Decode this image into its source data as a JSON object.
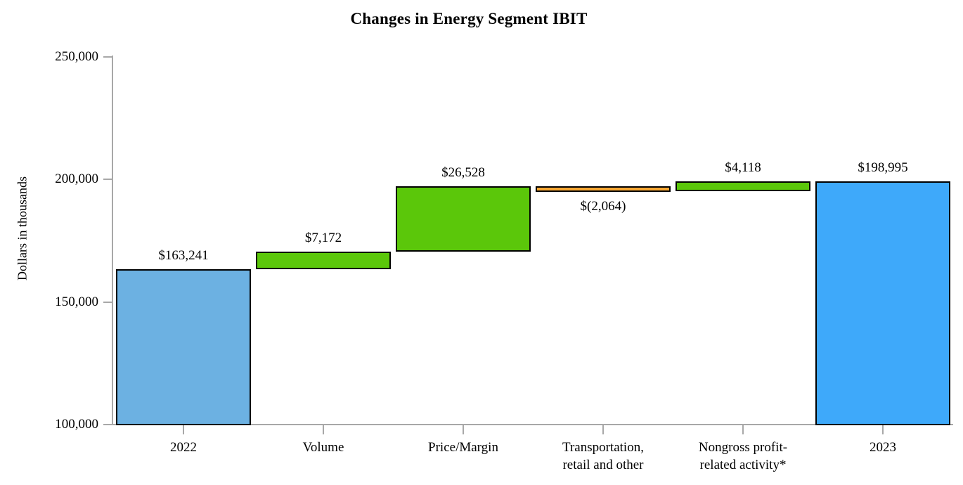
{
  "chart_data": {
    "type": "bar",
    "subtype": "waterfall",
    "title": "Changes in Energy Segment IBIT",
    "ylabel": "Dollars in thousands",
    "xlabel": "",
    "ylim": [
      100000,
      250000
    ],
    "yticks": [
      100000,
      150000,
      200000,
      250000
    ],
    "ytick_labels": [
      "100,000",
      "150,000",
      "200,000",
      "250,000"
    ],
    "grid": false,
    "legend": false,
    "categories": [
      "2022",
      "Volume",
      "Price/Margin",
      "Transportation, retail and other",
      "Nongross profit-related activity*",
      "2023"
    ],
    "bars": [
      {
        "category": "2022",
        "category_lines": [
          "2022"
        ],
        "value": 163241,
        "value_label": "$163,241",
        "from": 0,
        "to": 163241,
        "role": "total",
        "color": "#6CB1E2",
        "label_position": "above"
      },
      {
        "category": "Volume",
        "category_lines": [
          "Volume"
        ],
        "value": 7172,
        "value_label": "$7,172",
        "from": 163241,
        "to": 170413,
        "role": "increase",
        "color": "#5BC70A",
        "label_position": "above"
      },
      {
        "category": "Price/Margin",
        "category_lines": [
          "Price/Margin"
        ],
        "value": 26528,
        "value_label": "$26,528",
        "from": 170413,
        "to": 196941,
        "role": "increase",
        "color": "#5BC70A",
        "label_position": "above"
      },
      {
        "category": "Transportation, retail and other",
        "category_lines": [
          "Transportation,",
          "retail and other"
        ],
        "value": -2064,
        "value_label": "$(2,064)",
        "from": 196941,
        "to": 194877,
        "role": "decrease",
        "color": "#F8A732",
        "label_position": "below"
      },
      {
        "category": "Nongross profit-related activity*",
        "category_lines": [
          "Nongross profit-",
          "related activity*"
        ],
        "value": 4118,
        "value_label": "$4,118",
        "from": 194877,
        "to": 198995,
        "role": "increase",
        "color": "#5BC70A",
        "label_position": "above"
      },
      {
        "category": "2023",
        "category_lines": [
          "2023"
        ],
        "value": 198995,
        "value_label": "$198,995",
        "from": 0,
        "to": 198995,
        "role": "total",
        "color": "#3EA9FA",
        "label_position": "above"
      }
    ],
    "colors": {
      "total_start": "#6CB1E2",
      "total_end": "#3EA9FA",
      "increase": "#5BC70A",
      "decrease": "#F8A732",
      "bar_border": "#000000",
      "axis": "#a8a8a8",
      "text": "#000000"
    }
  }
}
